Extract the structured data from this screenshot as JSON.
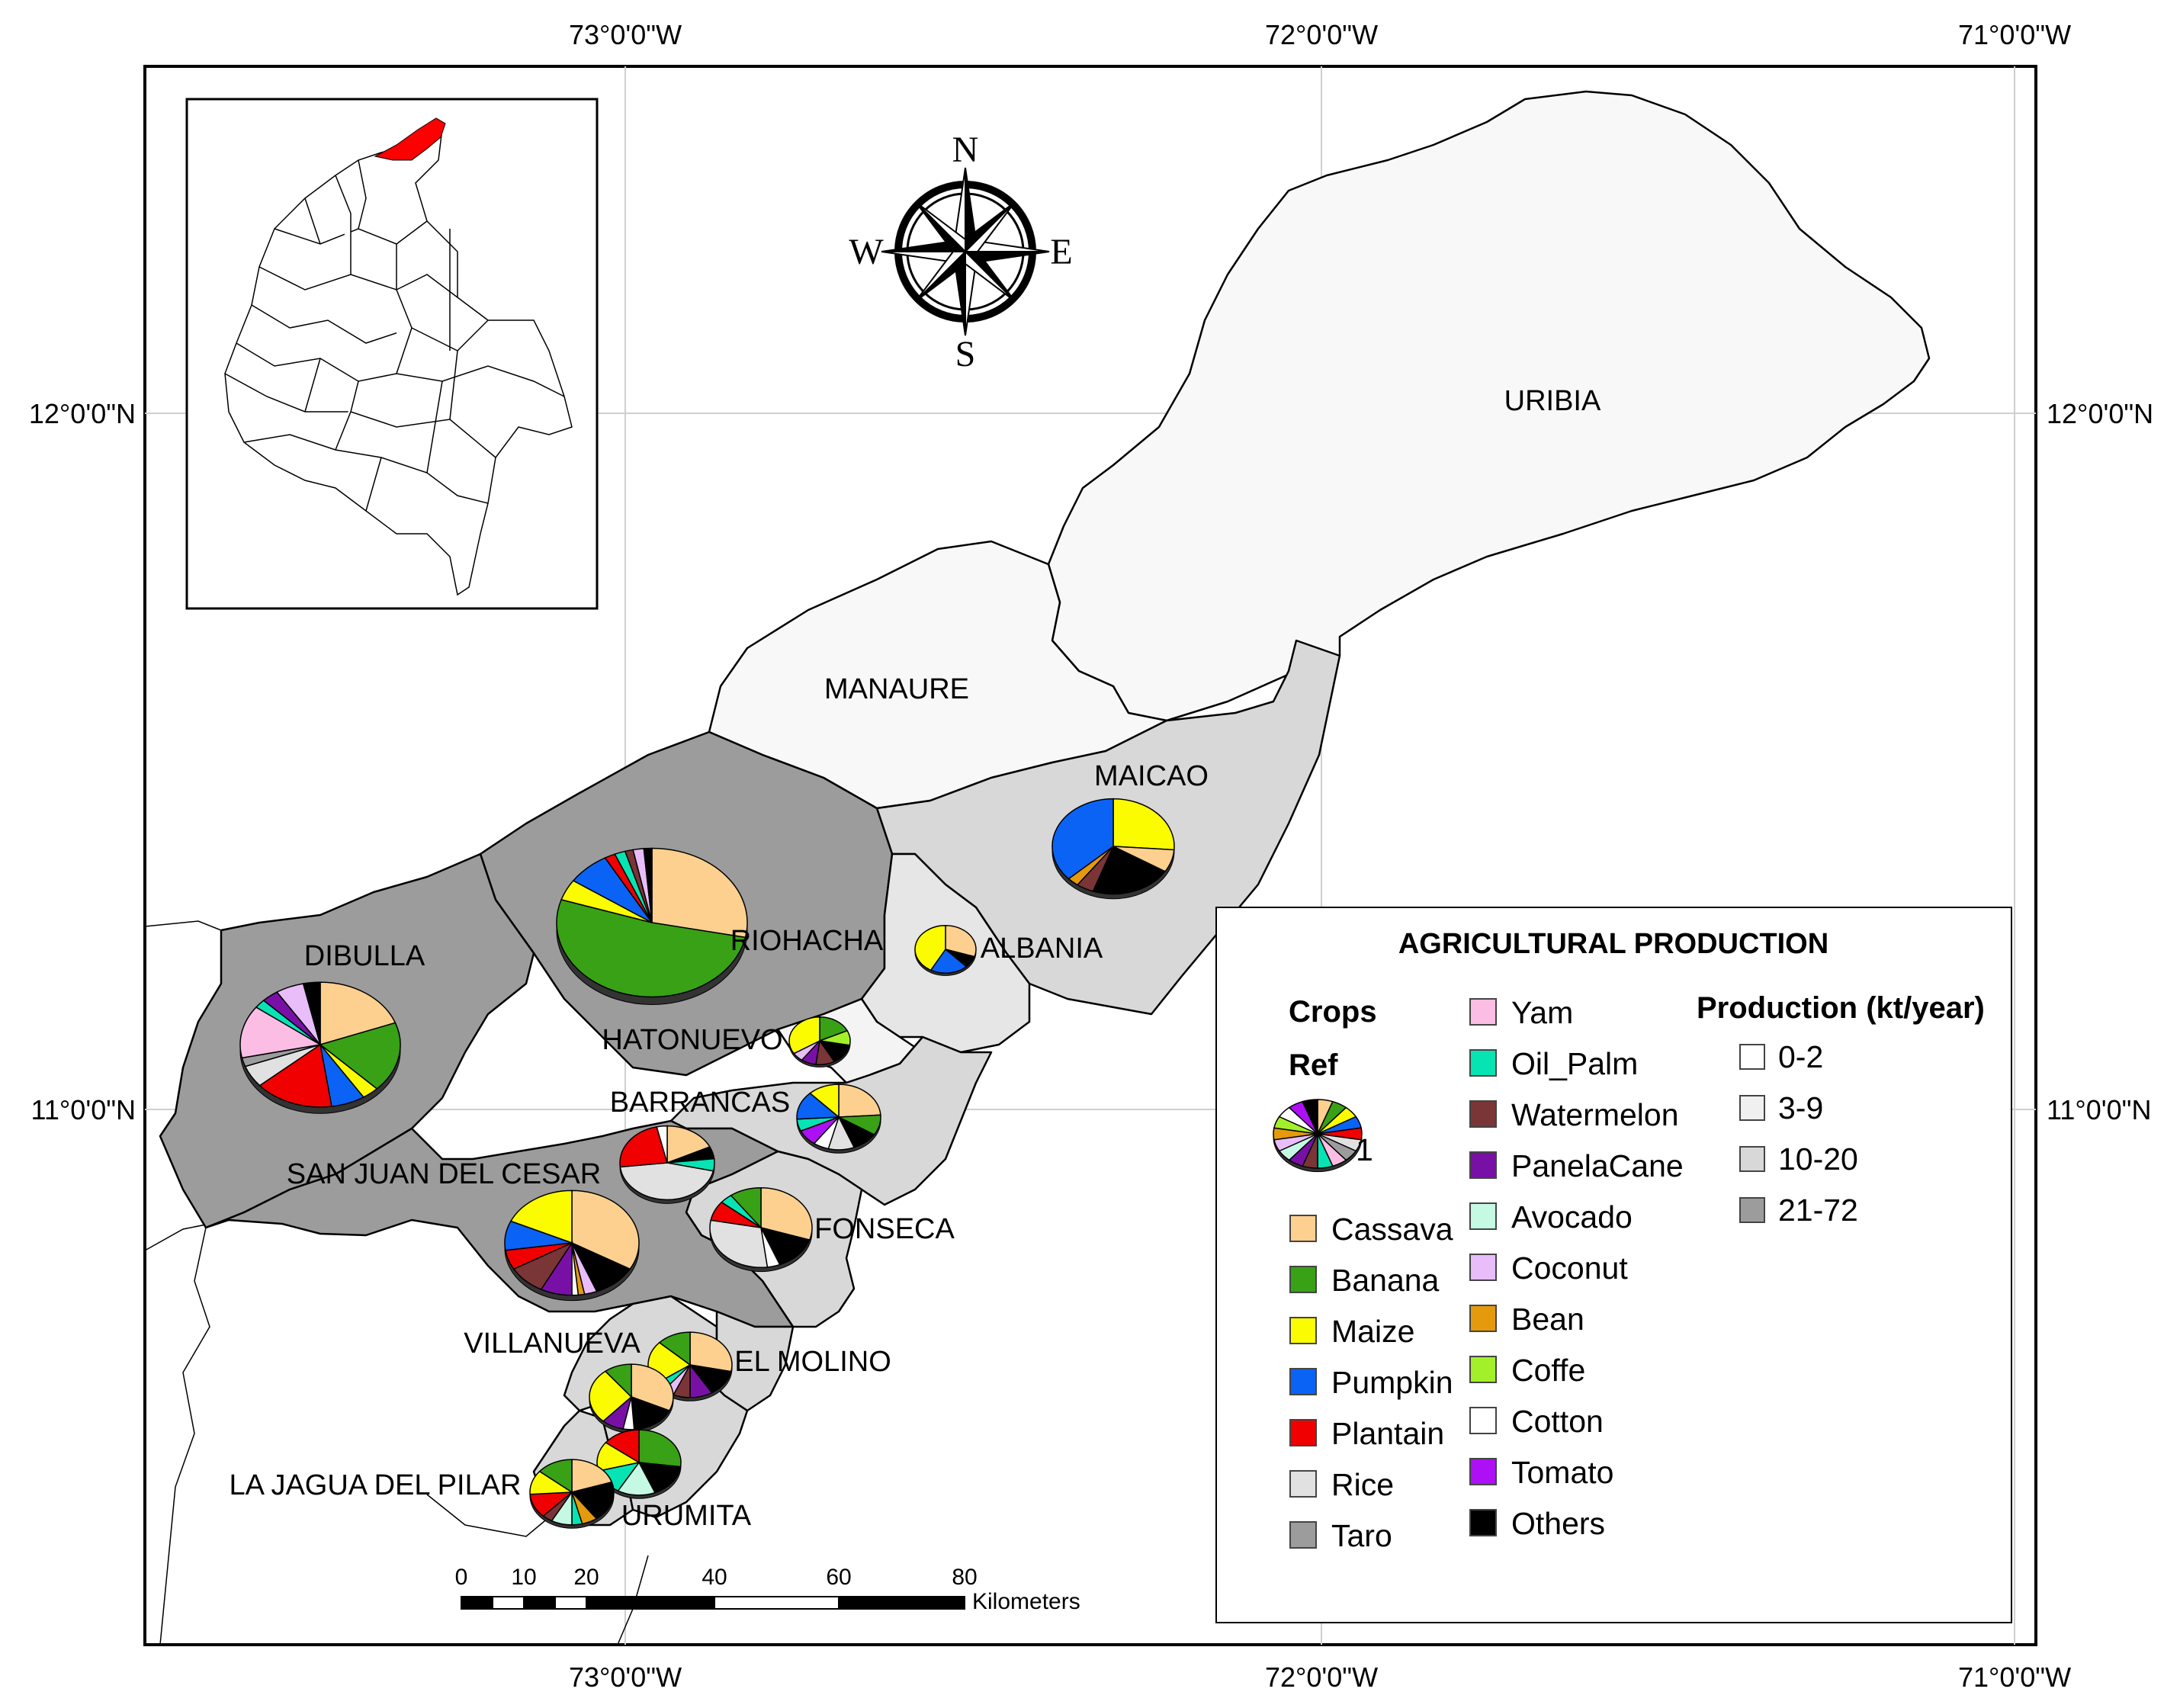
{
  "map": {
    "longitude_labels": [
      "73°0'0\"W",
      "72°0'0\"W",
      "71°0'0\"W"
    ],
    "latitude_labels": [
      "12°0'0\"N",
      "11°0'0\"N"
    ],
    "municipalities": [
      "URIBIA",
      "MANAURE",
      "MAICAO",
      "RIOHACHA",
      "ALBANIA",
      "DIBULLA",
      "HATONUEVO",
      "BARRANCAS",
      "SAN JUAN DEL CESAR",
      "FONSECA",
      "VILLANUEVA",
      "EL MOLINO",
      "LA JAGUA DEL PILAR",
      "URUMITA"
    ],
    "compass": {
      "n": "N",
      "s": "S",
      "e": "E",
      "w": "W"
    },
    "inset_highlight_color": "#ff0000"
  },
  "legend": {
    "title": "AGRICULTURAL PRODUCTION",
    "crops_heading": "Crops",
    "ref_heading": "Ref",
    "ref_number": "1",
    "production_heading": "Production (kt/year)",
    "crops": [
      {
        "name": "Cassava",
        "color": "#fdd08f"
      },
      {
        "name": "Banana",
        "color": "#38a116"
      },
      {
        "name": "Maize",
        "color": "#fcfc00"
      },
      {
        "name": "Pumpkin",
        "color": "#0a63f5"
      },
      {
        "name": "Plantain",
        "color": "#f00000"
      },
      {
        "name": "Rice",
        "color": "#e1e1e1"
      },
      {
        "name": "Taro",
        "color": "#9c9c9c"
      },
      {
        "name": "Yam",
        "color": "#fbbde4"
      },
      {
        "name": "Oil_Palm",
        "color": "#07e4b4"
      },
      {
        "name": "Watermelon",
        "color": "#7a3536"
      },
      {
        "name": "PanelaCane",
        "color": "#7810a6"
      },
      {
        "name": "Avocado",
        "color": "#c6f9e4"
      },
      {
        "name": "Coconut",
        "color": "#e8bdfa"
      },
      {
        "name": "Bean",
        "color": "#e49a0c"
      },
      {
        "name": "Coffe",
        "color": "#a3f02a"
      },
      {
        "name": "Cotton",
        "color": "#ffffff"
      },
      {
        "name": "Tomato",
        "color": "#ad10f4"
      },
      {
        "name": "Others",
        "color": "#000000"
      }
    ],
    "production_classes": [
      {
        "label": "0-2",
        "color": "#ffffff"
      },
      {
        "label": "3-9",
        "color": "#f0f0f0"
      },
      {
        "label": "10-20",
        "color": "#d8d8d8"
      },
      {
        "label": "21-72",
        "color": "#9c9c9c"
      }
    ]
  },
  "scale_bar": {
    "ticks": [
      "0",
      "10",
      "20",
      "40",
      "60",
      "80"
    ],
    "unit": "Kilometers"
  }
}
